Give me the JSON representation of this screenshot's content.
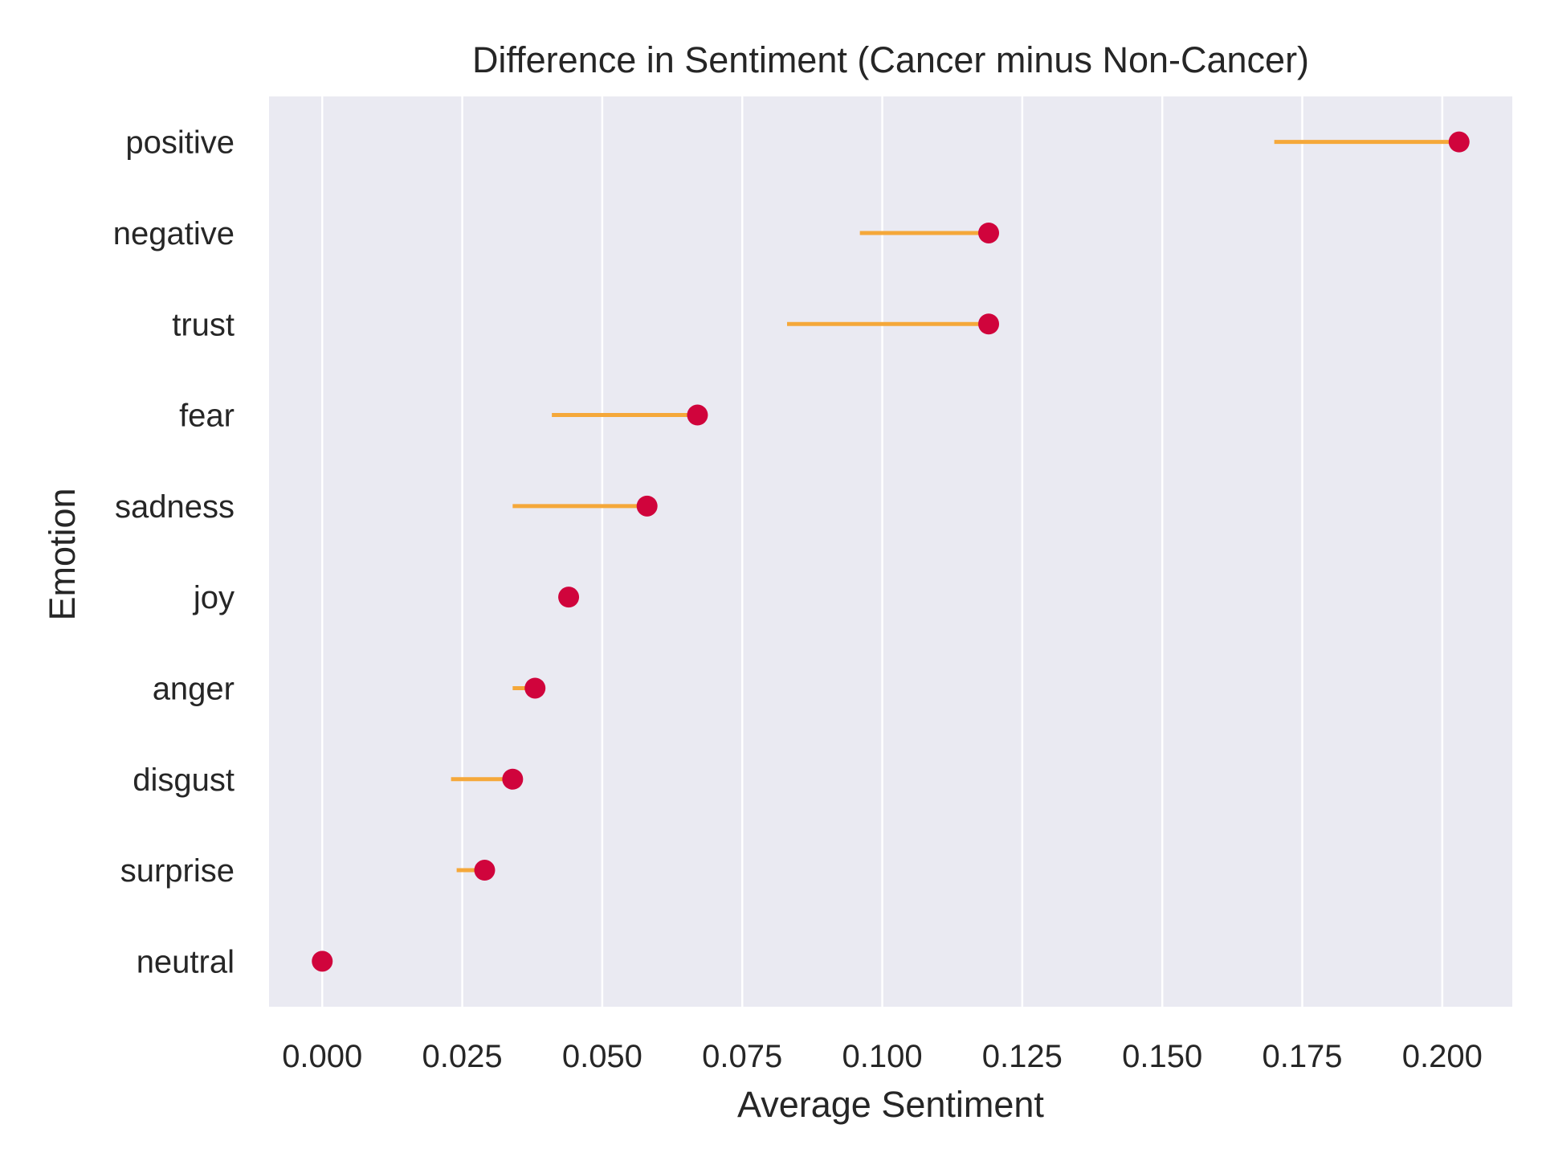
{
  "chart_data": {
    "type": "scatter",
    "title": "Difference in Sentiment (Cancer minus Non-Cancer)",
    "xlabel": "Average Sentiment",
    "ylabel": "Emotion",
    "xlim": [
      -0.0095,
      0.2125
    ],
    "x_ticks": [
      "0.000",
      "0.025",
      "0.050",
      "0.075",
      "0.100",
      "0.125",
      "0.150",
      "0.175",
      "0.200"
    ],
    "x_tick_values": [
      0,
      0.025,
      0.05,
      0.075,
      0.1,
      0.125,
      0.15,
      0.175,
      0.2
    ],
    "grid": "vertical",
    "categories": [
      "positive",
      "negative",
      "trust",
      "fear",
      "sadness",
      "joy",
      "anger",
      "disgust",
      "surprise",
      "neutral"
    ],
    "values": [
      0.203,
      0.119,
      0.119,
      0.067,
      0.058,
      0.044,
      0.038,
      0.034,
      0.029,
      0.0
    ],
    "range_low": [
      0.17,
      0.096,
      0.083,
      0.041,
      0.034,
      0.044,
      0.034,
      0.023,
      0.024,
      0.0
    ],
    "range_high": [
      0.203,
      0.119,
      0.119,
      0.067,
      0.058,
      0.045,
      0.038,
      0.034,
      0.029,
      0.0
    ],
    "colors": {
      "point": "#d0043c",
      "range_line": "#f5a83a",
      "plot_bg": "#eaeaf2",
      "grid": "#ffffff",
      "text": "#262626"
    }
  }
}
